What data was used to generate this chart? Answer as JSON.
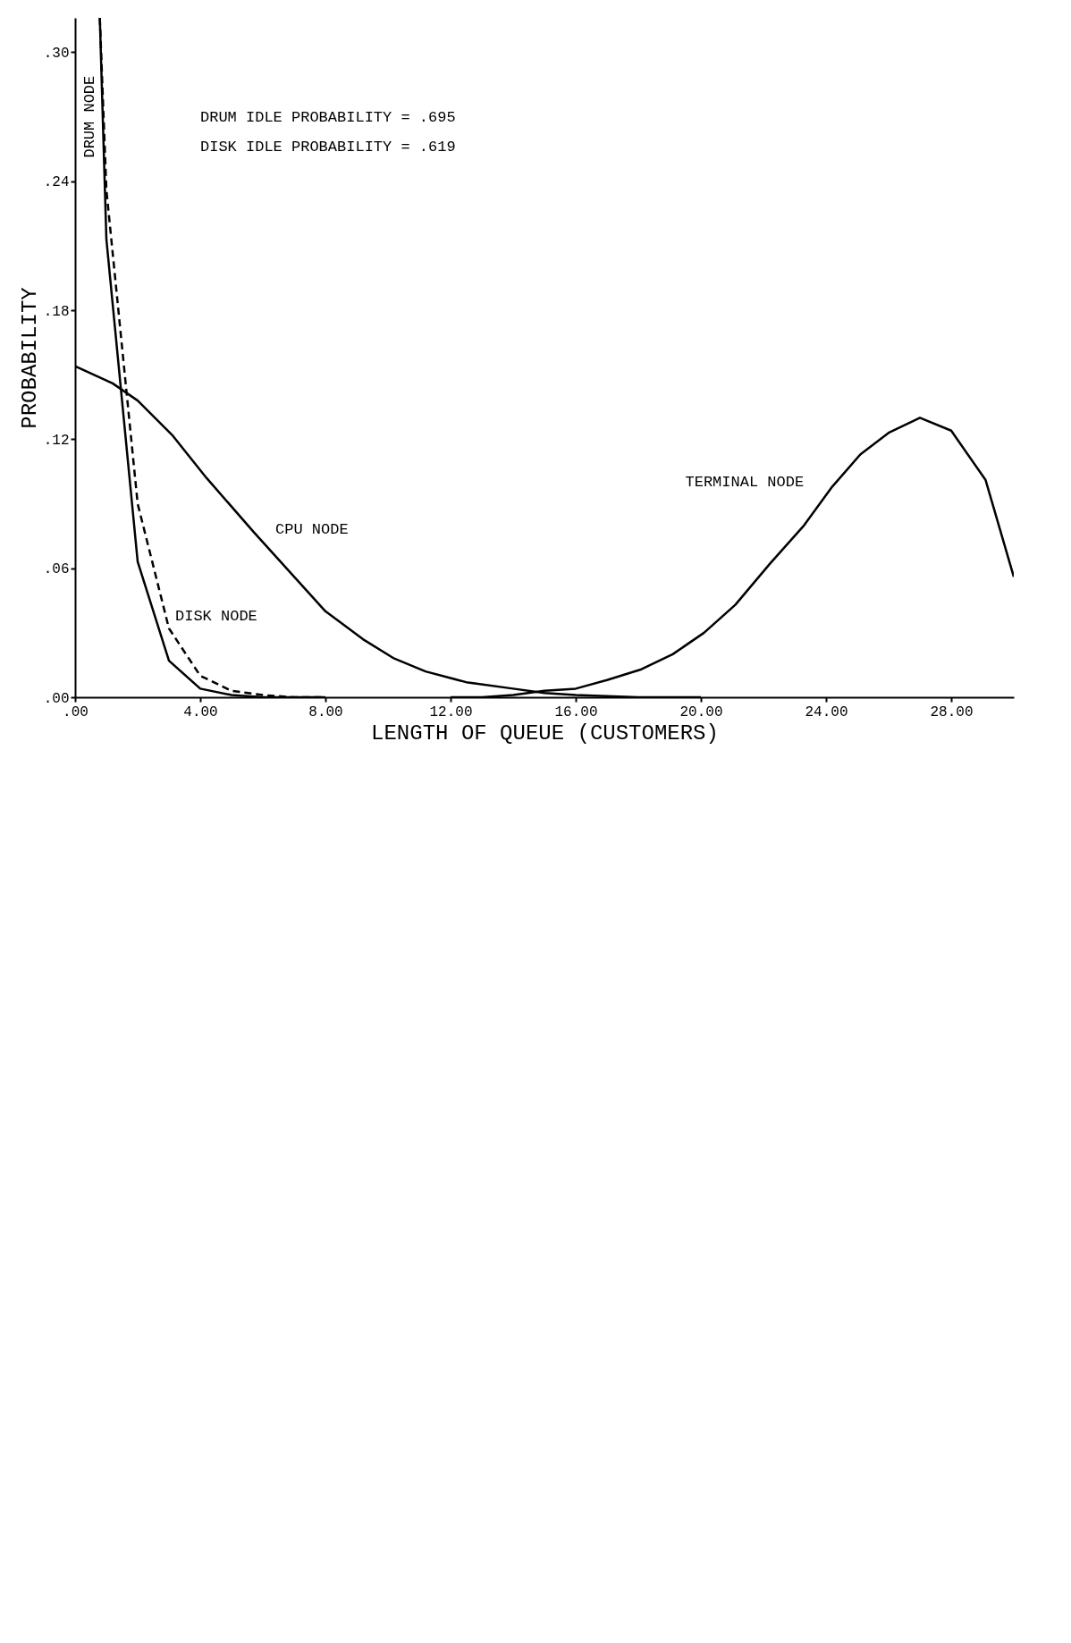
{
  "chart_data": {
    "type": "line",
    "xlabel": "LENGTH OF QUEUE (CUSTOMERS)",
    "ylabel": "PROBABILITY",
    "xlim": [
      0,
      30
    ],
    "ylim": [
      0,
      0.316
    ],
    "xticks": [
      {
        "value": 0,
        "label": ".00"
      },
      {
        "value": 4,
        "label": "4.00"
      },
      {
        "value": 8,
        "label": "8.00"
      },
      {
        "value": 12,
        "label": "12.00"
      },
      {
        "value": 16,
        "label": "16.00"
      },
      {
        "value": 20,
        "label": "20.00"
      },
      {
        "value": 24,
        "label": "24.00"
      },
      {
        "value": 28,
        "label": "28.00"
      }
    ],
    "yticks": [
      {
        "value": 0,
        "label": ".00"
      },
      {
        "value": 0.06,
        "label": ".06"
      },
      {
        "value": 0.12,
        "label": ".12"
      },
      {
        "value": 0.18,
        "label": ".18"
      },
      {
        "value": 0.24,
        "label": ".24"
      },
      {
        "value": 0.3,
        "label": ".30"
      }
    ],
    "grid": false,
    "marker": "none",
    "annotations": [
      "DRUM IDLE PROBABILITY = .695",
      "DISK IDLE PROBABILITY = .619"
    ],
    "series": [
      {
        "name": "TERMINAL NODE",
        "color": "#000000",
        "line_style": "solid",
        "x": [
          12,
          13,
          14,
          15,
          16,
          17,
          18.1,
          19.1,
          20.1,
          21.1,
          22.2,
          23.3,
          24.2,
          25.1,
          26,
          27,
          28,
          29.1,
          30
        ],
        "values": [
          0,
          0,
          0.001,
          0.003,
          0.004,
          0.008,
          0.013,
          0.02,
          0.03,
          0.043,
          0.062,
          0.08,
          0.098,
          0.113,
          0.123,
          0.13,
          0.124,
          0.101,
          0.056
        ]
      },
      {
        "name": "CPU NODE",
        "color": "#000000",
        "line_style": "solid",
        "x": [
          0,
          1.2,
          2,
          3.1,
          4.2,
          5.7,
          8,
          9.2,
          10.2,
          11.2,
          12.5,
          14,
          15,
          16,
          18,
          20
        ],
        "values": [
          0.154,
          0.146,
          0.138,
          0.122,
          0.102,
          0.077,
          0.04,
          0.027,
          0.018,
          0.012,
          0.007,
          0.004,
          0.002,
          0.001,
          0,
          0
        ]
      },
      {
        "name": "DISK NODE",
        "color": "#000000",
        "line_style": "dashed",
        "x": [
          0.79,
          1,
          2,
          3,
          4,
          5,
          6,
          7,
          8
        ],
        "values": [
          0.316,
          0.236,
          0.09,
          0.032,
          0.01,
          0.003,
          0.001,
          0,
          0
        ]
      },
      {
        "name": "DRUM NODE",
        "color": "#000000",
        "line_style": "solid",
        "x": [
          0.79,
          1,
          2,
          3,
          4,
          5,
          6,
          7,
          8
        ],
        "values": [
          0.316,
          0.213,
          0.063,
          0.017,
          0.004,
          0.001,
          0,
          0,
          0
        ]
      }
    ]
  }
}
